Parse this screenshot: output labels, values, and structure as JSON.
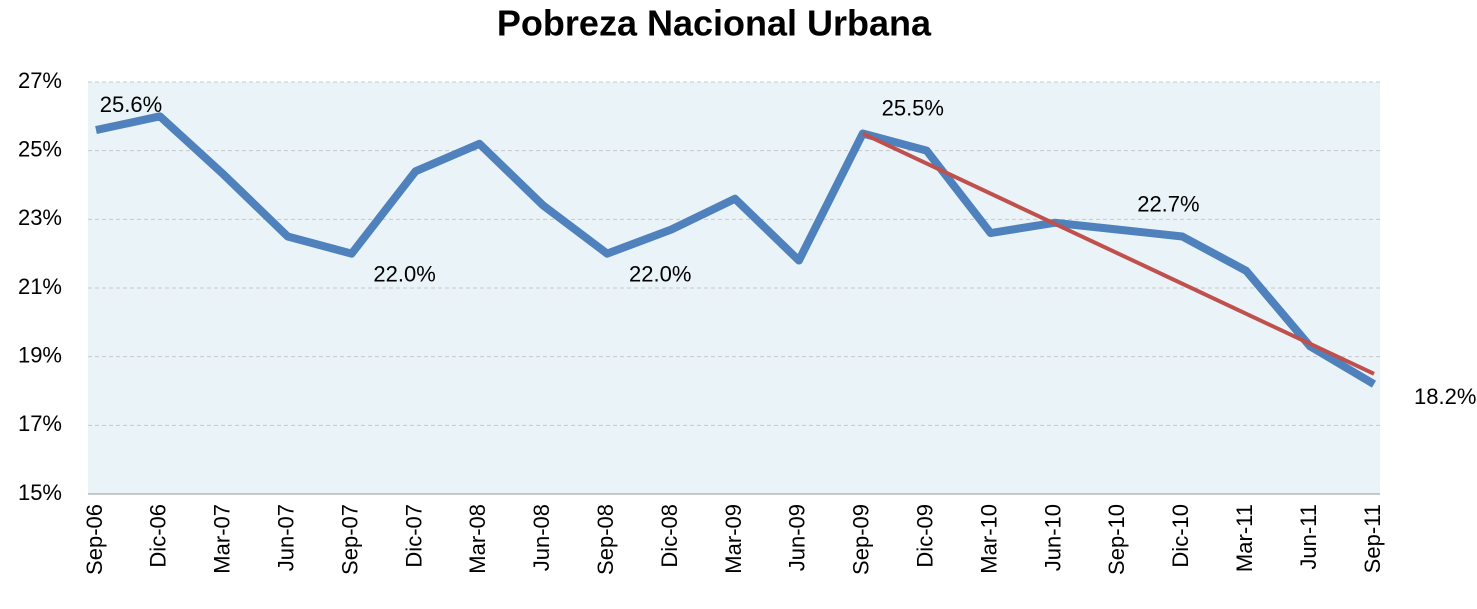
{
  "chart_data": {
    "type": "line",
    "title": "Pobreza Nacional Urbana",
    "categories": [
      "Sep-06",
      "Dic-06",
      "Mar-07",
      "Jun-07",
      "Sep-07",
      "Dic-07",
      "Mar-08",
      "Jun-08",
      "Sep-08",
      "Dic-08",
      "Mar-09",
      "Jun-09",
      "Sep-09",
      "Dic-09",
      "Mar-10",
      "Jun-10",
      "Sep-10",
      "Dic-10",
      "Mar-11",
      "Jun-11",
      "Sep-11"
    ],
    "series": [
      {
        "color": "#4f81bd",
        "values": [
          25.6,
          26.0,
          24.3,
          22.5,
          22.0,
          24.4,
          25.2,
          23.4,
          22.0,
          22.7,
          23.6,
          21.8,
          25.5,
          25.0,
          22.6,
          22.9,
          22.7,
          22.5,
          21.5,
          19.3,
          18.2
        ],
        "value_labels": [
          "25.6%",
          null,
          null,
          null,
          "22.0%",
          null,
          null,
          null,
          "22.0%",
          null,
          null,
          null,
          "25.5%",
          null,
          null,
          null,
          "22.7%",
          null,
          null,
          null,
          "18.2%"
        ]
      }
    ],
    "trendline": {
      "x": [
        "Sep-09",
        "Sep-11"
      ],
      "values": [
        25.5,
        18.5
      ],
      "color": "#c0504d"
    },
    "ylim": [
      15,
      27
    ],
    "yticks": [
      {
        "value": 15,
        "label": "15%"
      },
      {
        "value": 17,
        "label": "17%"
      },
      {
        "value": 19,
        "label": "19%"
      },
      {
        "value": 21,
        "label": "21%"
      },
      {
        "value": 23,
        "label": "23%"
      },
      {
        "value": 25,
        "label": "25%"
      },
      {
        "value": 27,
        "label": "27%"
      }
    ],
    "grid": true
  }
}
